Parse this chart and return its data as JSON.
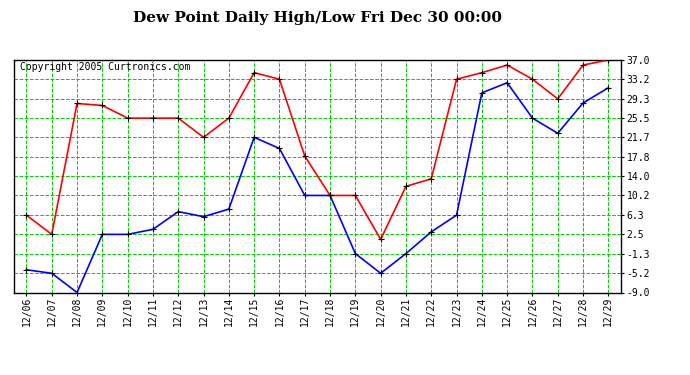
{
  "title": "Dew Point Daily High/Low Fri Dec 30 00:00",
  "copyright": "Copyright 2005 Curtronics.com",
  "x_labels": [
    "12/06",
    "12/07",
    "12/08",
    "12/09",
    "12/10",
    "12/11",
    "12/12",
    "12/13",
    "12/14",
    "12/15",
    "12/16",
    "12/17",
    "12/18",
    "12/19",
    "12/20",
    "12/21",
    "12/22",
    "12/23",
    "12/24",
    "12/25",
    "12/26",
    "12/27",
    "12/28",
    "12/29"
  ],
  "y_ticks": [
    -9.0,
    -5.2,
    -1.3,
    2.5,
    6.3,
    10.2,
    14.0,
    17.8,
    21.7,
    25.5,
    29.3,
    33.2,
    37.0
  ],
  "y_min": -9.0,
  "y_max": 37.0,
  "high_values": [
    6.3,
    2.5,
    28.4,
    28.0,
    25.5,
    25.5,
    25.5,
    21.7,
    25.5,
    34.5,
    33.2,
    18.0,
    10.2,
    10.2,
    1.5,
    12.0,
    13.5,
    33.2,
    34.5,
    36.0,
    33.2,
    29.3,
    36.0,
    37.0
  ],
  "low_values": [
    -4.5,
    -5.2,
    -9.0,
    2.5,
    2.5,
    3.5,
    7.0,
    6.0,
    7.5,
    21.7,
    19.5,
    10.2,
    10.2,
    -1.3,
    -5.2,
    -1.3,
    3.0,
    6.3,
    30.5,
    32.5,
    25.5,
    22.5,
    28.5,
    31.5
  ],
  "high_color": "#ff0000",
  "low_color": "#0000ff",
  "grid_color": "#00cc00",
  "bg_color": "#ffffff",
  "plot_bg_color": "#ffffff",
  "border_color": "#000000",
  "title_fontsize": 11,
  "tick_fontsize": 7,
  "copyright_fontsize": 7
}
